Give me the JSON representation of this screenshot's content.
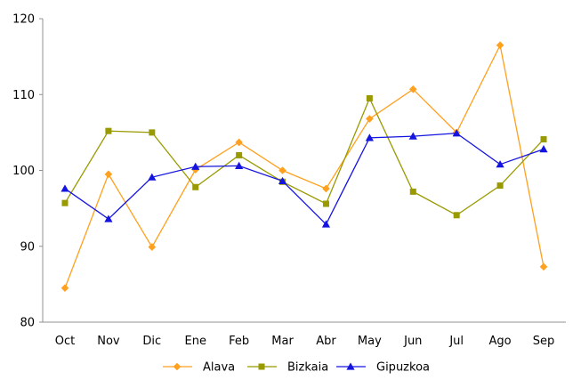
{
  "chart_data": {
    "type": "line",
    "title": "",
    "xlabel": "",
    "ylabel": "",
    "categories": [
      "Oct",
      "Nov",
      "Dic",
      "Ene",
      "Feb",
      "Mar",
      "Abr",
      "May",
      "Jun",
      "Jul",
      "Ago",
      "Sep"
    ],
    "series": [
      {
        "name": "Alava",
        "marker": "diamond",
        "color": "#FFA01E",
        "values": [
          84.5,
          99.5,
          89.9,
          100.1,
          103.7,
          100.0,
          97.6,
          106.8,
          110.7,
          105.0,
          116.5,
          87.3
        ]
      },
      {
        "name": "Bizkaia",
        "marker": "square",
        "color": "#999900",
        "values": [
          95.7,
          105.2,
          105.0,
          97.8,
          102.0,
          98.5,
          95.6,
          109.5,
          97.2,
          94.1,
          98.0,
          104.1
        ]
      },
      {
        "name": "Gipuzkoa",
        "marker": "triangle",
        "color": "#1414E0",
        "values": [
          97.6,
          93.6,
          99.1,
          100.5,
          100.6,
          98.6,
          92.9,
          104.3,
          104.5,
          104.9,
          100.8,
          102.8
        ]
      }
    ],
    "ylim": [
      80,
      120
    ],
    "yticks": [
      80,
      90,
      100,
      110,
      120
    ],
    "grid": false,
    "legend_position": "bottom",
    "axis_color": "#909090",
    "label_color": "#000000",
    "background": "#FFFFFF"
  }
}
